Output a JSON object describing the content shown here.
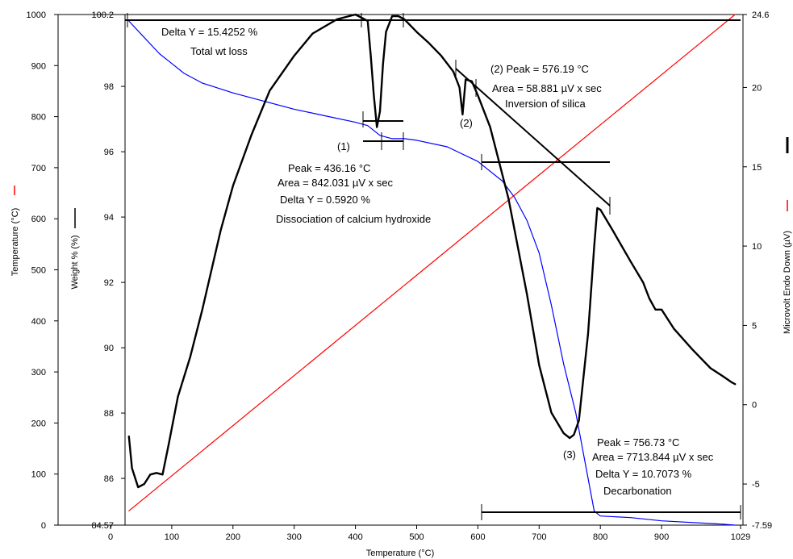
{
  "chart_data": {
    "type": "line",
    "xlabel": "Temperature (°C)",
    "xlim": [
      0,
      1029
    ],
    "x_ticks": [
      "0",
      "100",
      "200",
      "300",
      "400",
      "500",
      "600",
      "700",
      "800",
      "900",
      "1029"
    ],
    "temperature_axis": {
      "label": "Temperature (°C)",
      "range": [
        0,
        1000
      ],
      "ticks": [
        "0",
        "100",
        "200",
        "300",
        "400",
        "500",
        "600",
        "700",
        "800",
        "900",
        "1000"
      ]
    },
    "weight_axis": {
      "label": "Weight % (%)",
      "range": [
        84.57,
        100.2
      ],
      "ticks": [
        "84.57",
        "86",
        "88",
        "90",
        "92",
        "94",
        "96",
        "98",
        "100.2"
      ]
    },
    "microvolt_axis": {
      "label": "Microvolt Endo Down (µV)",
      "range": [
        -7.59,
        24.6
      ],
      "ticks": [
        "-7.59",
        "-5",
        "0",
        "5",
        "10",
        "15",
        "20",
        "24.6"
      ]
    },
    "series": [
      {
        "key": "temperature",
        "color": "#ff0000",
        "axis": "temperature",
        "x": [
          30,
          1020
        ],
        "y": [
          28,
          1000
        ]
      },
      {
        "key": "weight",
        "color": "#0000ff",
        "axis": "weight",
        "x": [
          30,
          50,
          80,
          100,
          120,
          150,
          200,
          250,
          300,
          350,
          400,
          420,
          430,
          440,
          450,
          460,
          480,
          500,
          550,
          600,
          640,
          660,
          680,
          700,
          720,
          740,
          760,
          780,
          790,
          800,
          850,
          900,
          1000,
          1020
        ],
        "y": [
          100.0,
          99.6,
          99.0,
          98.7,
          98.4,
          98.1,
          97.8,
          97.55,
          97.3,
          97.1,
          96.9,
          96.8,
          96.65,
          96.5,
          96.45,
          96.4,
          96.4,
          96.35,
          96.15,
          95.7,
          95.1,
          94.6,
          93.9,
          92.9,
          91.3,
          89.5,
          88.0,
          86.0,
          85.0,
          84.85,
          84.8,
          84.7,
          84.6,
          84.57
        ]
      },
      {
        "key": "microvolt",
        "color": "#000000",
        "axis": "microvolt",
        "x": [
          30,
          35,
          45,
          55,
          65,
          75,
          85,
          95,
          110,
          130,
          150,
          180,
          200,
          230,
          260,
          300,
          330,
          370,
          400,
          420,
          425,
          430,
          435,
          440,
          445,
          450,
          460,
          470,
          480,
          500,
          520,
          540,
          560,
          570,
          575,
          580,
          590,
          600,
          620,
          650,
          680,
          700,
          720,
          740,
          750,
          756.73,
          765,
          780,
          790,
          795,
          800,
          820,
          850,
          870,
          880,
          890,
          900,
          920,
          950,
          980,
          1000,
          1015,
          1020
        ],
        "y": [
          -2.0,
          -4.0,
          -5.2,
          -5.0,
          -4.4,
          -4.3,
          -4.4,
          -2.5,
          0.5,
          3.0,
          6.0,
          11.0,
          13.8,
          17.0,
          19.8,
          22.0,
          23.4,
          24.3,
          24.6,
          24.2,
          22.0,
          19.5,
          17.5,
          18.5,
          21.5,
          23.5,
          24.5,
          24.5,
          24.3,
          23.5,
          22.8,
          22.0,
          21.0,
          20.0,
          18.3,
          20.5,
          20.4,
          19.5,
          17.5,
          13.0,
          7.0,
          2.5,
          -0.5,
          -1.8,
          -2.1,
          -1.9,
          -1.0,
          4.5,
          10.0,
          12.4,
          12.3,
          11.0,
          9.0,
          7.7,
          6.7,
          6.0,
          6.0,
          4.8,
          3.5,
          2.3,
          1.8,
          1.4,
          1.3
        ]
      }
    ],
    "annotations": [
      {
        "text": "Delta Y = 15.4252 %"
      },
      {
        "text": "Total wt loss"
      },
      {
        "text": "(2) Peak = 576.19 °C"
      },
      {
        "text": "Area = 58.881 µV x sec"
      },
      {
        "text": "Inversion of silica"
      },
      {
        "text": "(2)"
      },
      {
        "text": "(1)"
      },
      {
        "text": "Peak = 436.16 °C"
      },
      {
        "text": "Area = 842.031 µV x sec"
      },
      {
        "text": "Delta Y = 0.5920 %"
      },
      {
        "text": "Dissociation of calcium hydroxide"
      },
      {
        "text": "Peak = 756.73 °C"
      },
      {
        "text": "(3)"
      },
      {
        "text": "Area = 7713.844 µV x sec"
      },
      {
        "text": "Delta Y = 10.7073 %"
      },
      {
        "text": "Decarbonation"
      }
    ]
  }
}
